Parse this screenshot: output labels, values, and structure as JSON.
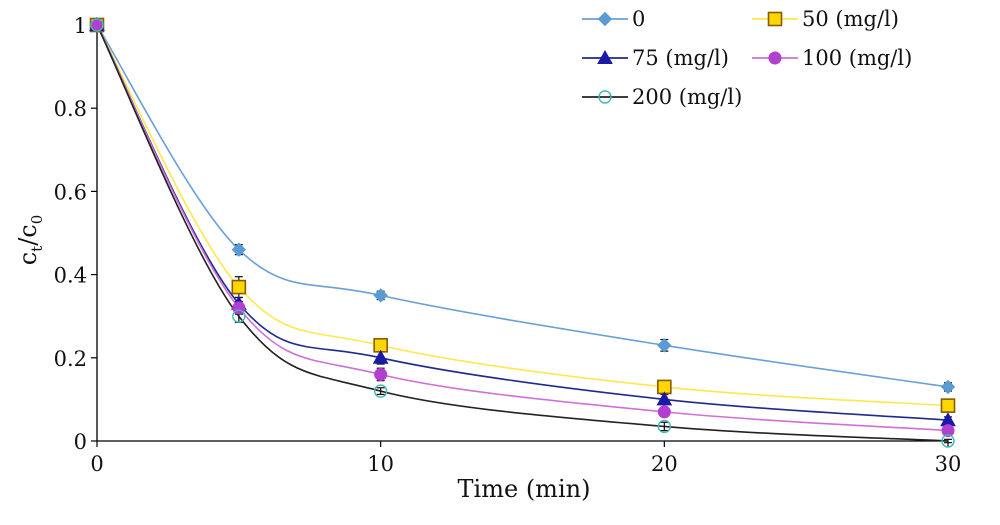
{
  "chart_data": {
    "type": "line",
    "xlabel": "Time (min)",
    "ylabel": "c",
    "ylabel_sub_1": "t",
    "ylabel_sep": "/c",
    "ylabel_sub_2": "0",
    "xlim": [
      0,
      30
    ],
    "ylim": [
      0,
      1
    ],
    "x_ticks": [
      0,
      10,
      20,
      30
    ],
    "x_tick_labels": [
      "0",
      "10",
      "20",
      "30"
    ],
    "y_ticks": [
      0,
      0.2,
      0.4,
      0.6,
      0.8,
      1
    ],
    "y_tick_labels": [
      "0",
      "0.2",
      "0.4",
      "0.6",
      "0.8",
      "1"
    ],
    "grid": false,
    "legend_position": "top-right",
    "x": [
      0,
      5,
      10,
      20,
      30
    ],
    "series": [
      {
        "name": "0",
        "values": [
          1.0,
          0.46,
          0.35,
          0.23,
          0.13
        ],
        "errors": [
          0.0,
          0.012,
          0.01,
          0.014,
          0.01
        ],
        "color": "#6a9fd8",
        "marker": "diamond",
        "marker_color": "#5b9bd5"
      },
      {
        "name": "50 (mg/l)",
        "values": [
          1.0,
          0.37,
          0.23,
          0.13,
          0.085
        ],
        "errors": [
          0.0,
          0.025,
          0.012,
          0.012,
          0.008
        ],
        "color": "#ffe84a",
        "marker": "square",
        "marker_color": "#ffd700"
      },
      {
        "name": "75 (mg/l)",
        "values": [
          1.0,
          0.33,
          0.2,
          0.1,
          0.05
        ],
        "errors": [
          0.0,
          0.015,
          0.015,
          0.012,
          0.008
        ],
        "color": "#1f2a8f",
        "marker": "triangle",
        "marker_color": "#1a1aa6"
      },
      {
        "name": "100 (mg/l)",
        "values": [
          1.0,
          0.32,
          0.16,
          0.07,
          0.025
        ],
        "errors": [
          0.0,
          0.015,
          0.015,
          0.01,
          0.008
        ],
        "color": "#d070d6",
        "marker": "circle",
        "marker_color": "#b33fd1"
      },
      {
        "name": "200 (mg/l)",
        "values": [
          1.0,
          0.3,
          0.12,
          0.035,
          0.0
        ],
        "errors": [
          0.0,
          0.015,
          0.008,
          0.01,
          0.004
        ],
        "color": "#222222",
        "marker": "open-circle",
        "marker_color": "#3fb8b8"
      }
    ]
  }
}
